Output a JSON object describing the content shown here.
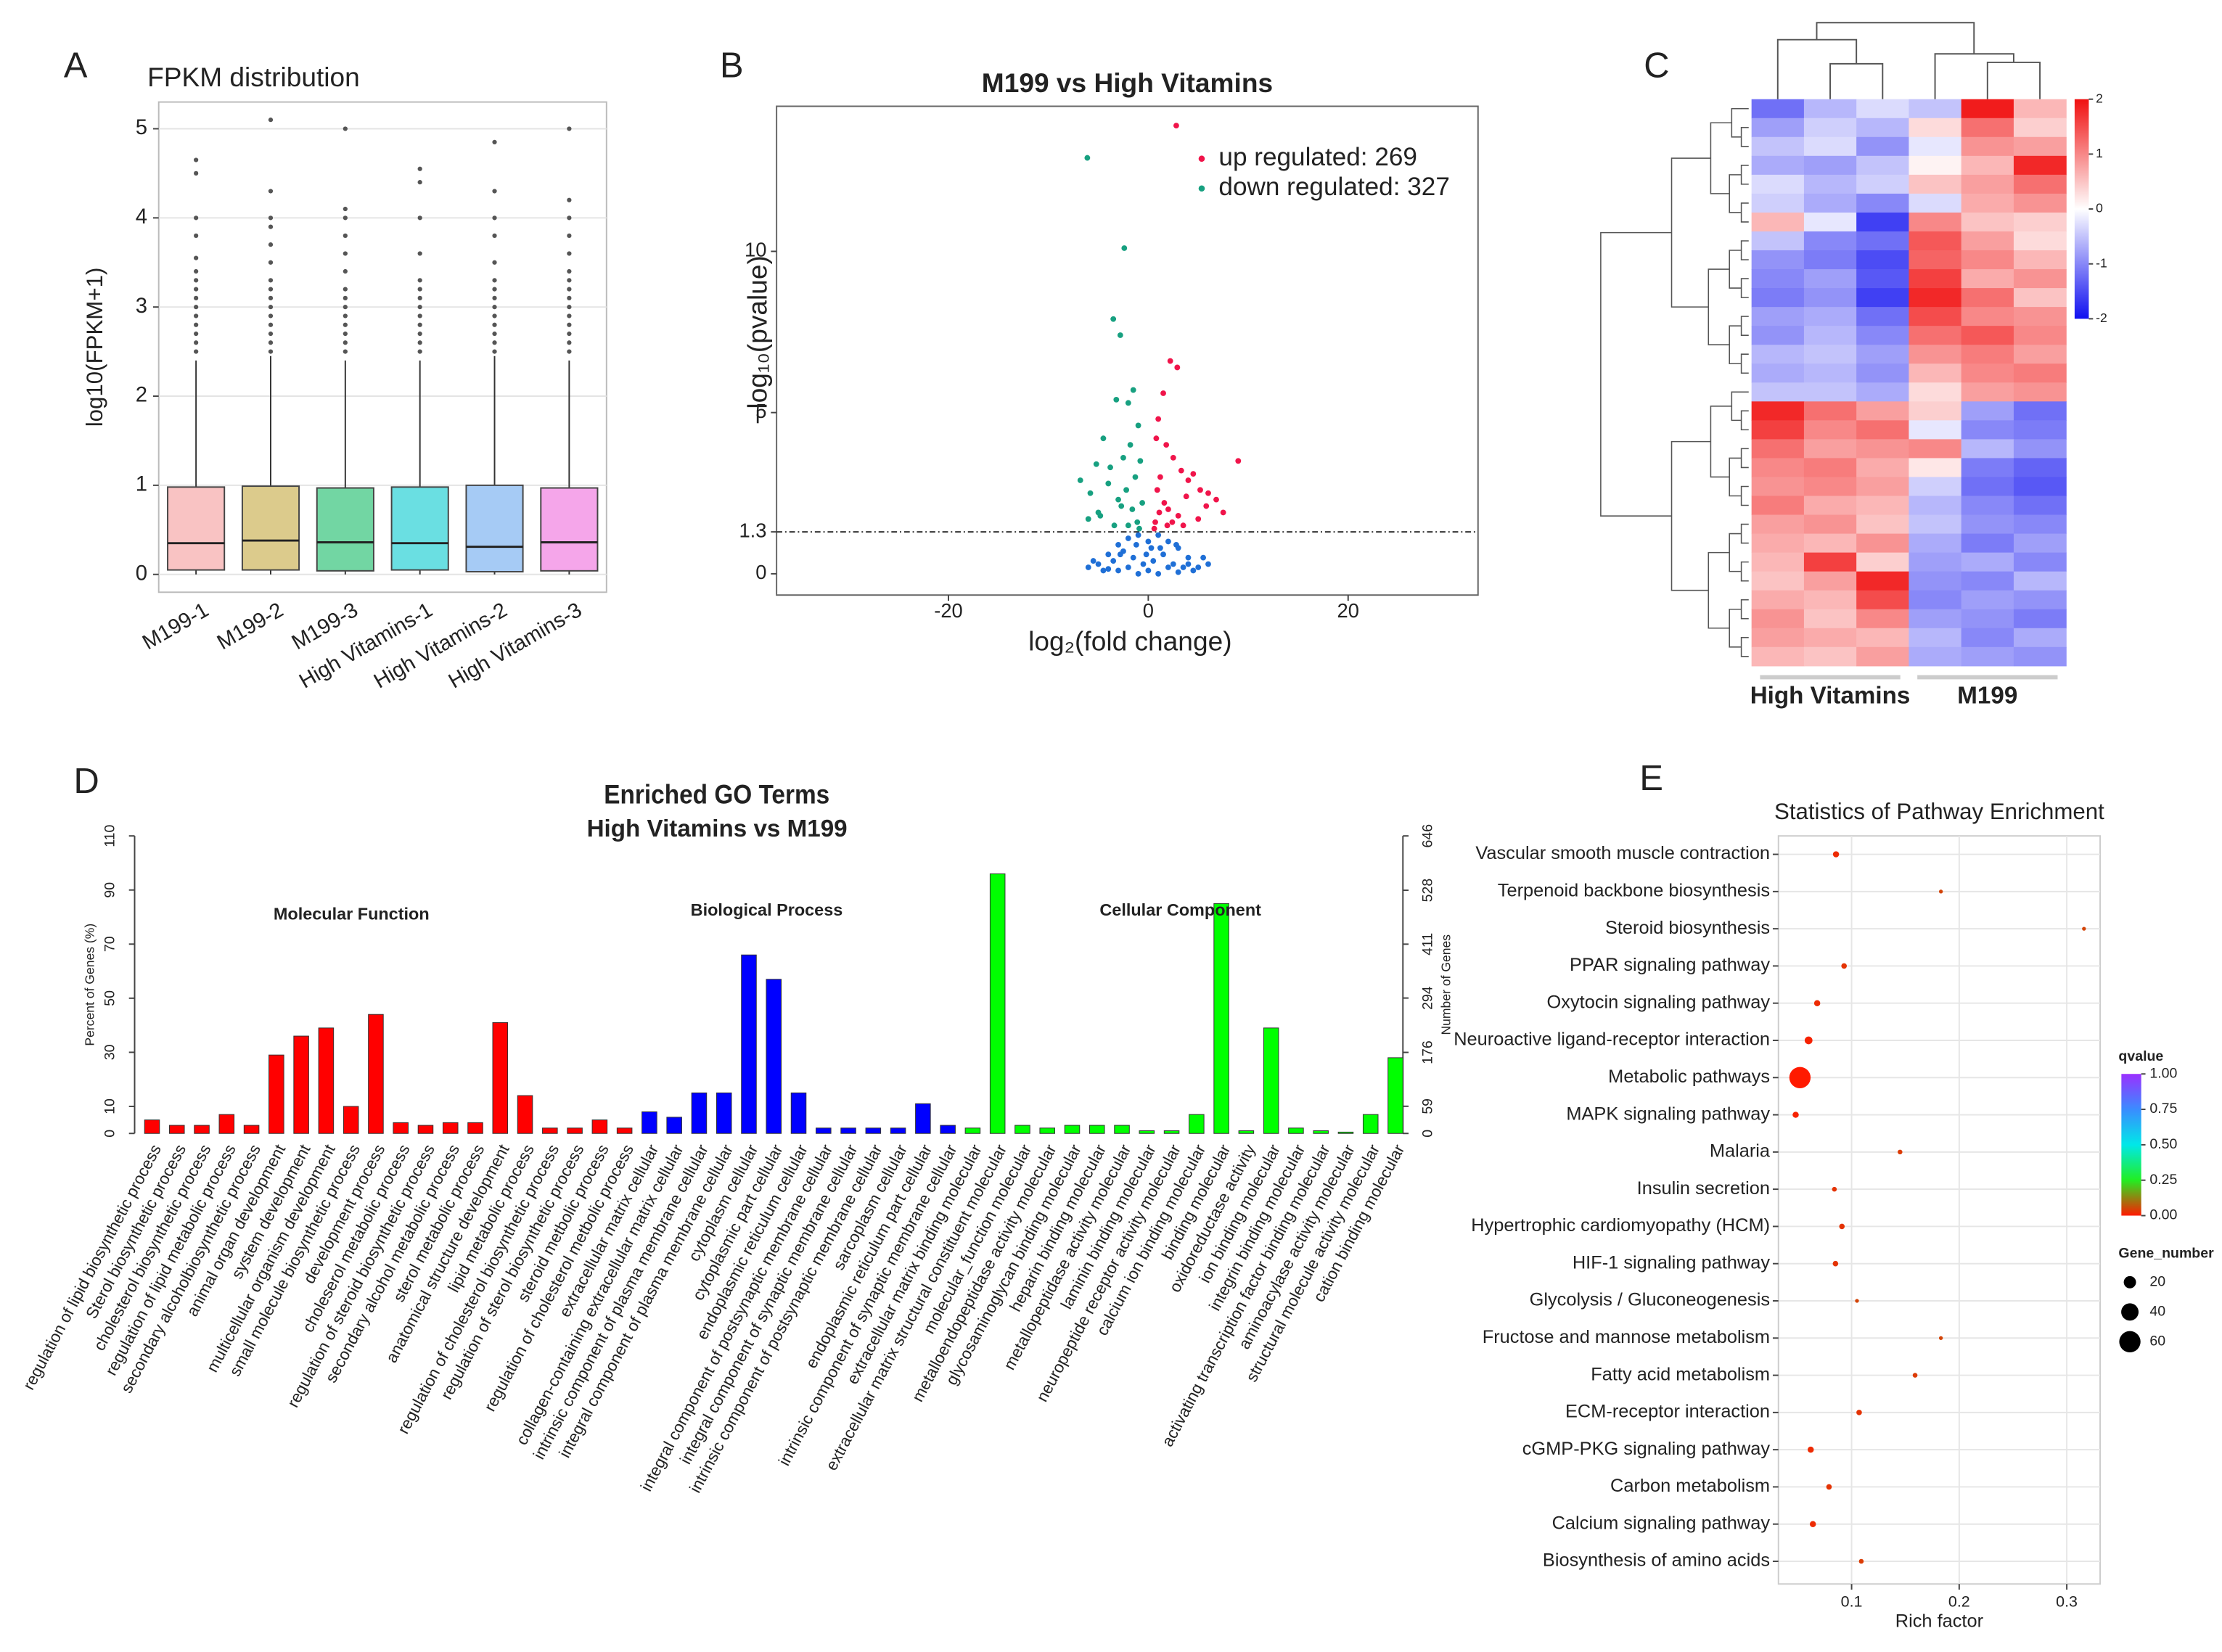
{
  "chart_data": [
    {
      "type": "box",
      "label": "A",
      "title": "FPKM distribution",
      "ylabel": "log10(FPKM+1)",
      "categories": [
        "M199-1",
        "M199-2",
        "M199-3",
        "High Vitamins-1",
        "High Vitamins-2",
        "High Vitamins-3"
      ],
      "colors": [
        "#f9c3c3",
        "#dccb8c",
        "#72d6a3",
        "#6adfe2",
        "#a6cbf5",
        "#f5a6ea"
      ],
      "boxes": [
        {
          "min": 0,
          "q1": 0.05,
          "median": 0.35,
          "q3": 0.98,
          "max": 2.4,
          "outliers": [
            2.5,
            2.6,
            2.7,
            2.8,
            2.9,
            3.0,
            3.1,
            3.2,
            3.3,
            3.4,
            3.55,
            3.8,
            4.0,
            4.5,
            4.65
          ]
        },
        {
          "min": 0,
          "q1": 0.05,
          "median": 0.38,
          "q3": 0.99,
          "max": 2.45,
          "outliers": [
            2.5,
            2.6,
            2.7,
            2.8,
            2.9,
            3.0,
            3.1,
            3.2,
            3.3,
            3.5,
            3.7,
            3.9,
            4.0,
            4.3,
            5.1
          ]
        },
        {
          "min": 0,
          "q1": 0.04,
          "median": 0.36,
          "q3": 0.97,
          "max": 2.4,
          "outliers": [
            2.5,
            2.6,
            2.7,
            2.8,
            2.9,
            3.0,
            3.1,
            3.2,
            3.4,
            3.6,
            3.8,
            4.0,
            4.1,
            5.0
          ]
        },
        {
          "min": 0,
          "q1": 0.05,
          "median": 0.35,
          "q3": 0.98,
          "max": 2.4,
          "outliers": [
            2.5,
            2.6,
            2.7,
            2.8,
            2.9,
            3.0,
            3.1,
            3.2,
            3.3,
            3.6,
            4.0,
            4.4,
            4.55
          ]
        },
        {
          "min": 0,
          "q1": 0.03,
          "median": 0.31,
          "q3": 1.0,
          "max": 2.45,
          "outliers": [
            2.5,
            2.6,
            2.7,
            2.8,
            2.9,
            3.0,
            3.1,
            3.2,
            3.3,
            3.5,
            3.8,
            4.0,
            4.3,
            4.85
          ]
        },
        {
          "min": 0,
          "q1": 0.04,
          "median": 0.36,
          "q3": 0.97,
          "max": 2.4,
          "outliers": [
            2.5,
            2.6,
            2.7,
            2.8,
            2.9,
            3.0,
            3.1,
            3.2,
            3.3,
            3.4,
            3.6,
            3.8,
            4.0,
            4.2,
            5.0
          ]
        }
      ],
      "ylim": [
        -0.2,
        5.3
      ],
      "yticks": [
        0,
        1,
        2,
        3,
        4,
        5
      ],
      "grid": true
    },
    {
      "type": "scatter",
      "label": "B",
      "title": "M199 vs High Vitamins",
      "xlabel": "log₂(fold change)",
      "ylabel": "−log₁₀(pvalue)",
      "series": [
        {
          "name": "up regulated: 269",
          "color": "#f0144a",
          "x": [
            2.8,
            2.2,
            2.9,
            1.5,
            1.0,
            0.8,
            1.8,
            2.5,
            3.3,
            4.0,
            4.5,
            5.2,
            6.0,
            6.8,
            7.5,
            9.0,
            1.2,
            0.9,
            1.6,
            2.0,
            3.0,
            3.8,
            5.0,
            5.8,
            0.7,
            1.1,
            2.4,
            1.9,
            0.6,
            3.5
          ],
          "values": [
            13.9,
            6.6,
            6.4,
            5.6,
            4.8,
            4.2,
            4.0,
            3.6,
            3.2,
            2.9,
            3.1,
            2.6,
            2.5,
            2.3,
            1.9,
            3.5,
            3.0,
            2.6,
            2.2,
            2.0,
            1.8,
            2.4,
            1.7,
            2.1,
            1.6,
            1.9,
            1.6,
            1.5,
            1.4,
            1.5
          ]
        },
        {
          "name": "down regulated: 327",
          "color": "#17a080",
          "x": [
            -6.1,
            -2.4,
            -3.5,
            -2.8,
            -1.5,
            -2.0,
            -3.2,
            -1.0,
            -4.5,
            -5.2,
            -6.8,
            -1.8,
            -2.5,
            -3.8,
            -0.8,
            -1.3,
            -4.0,
            -5.8,
            -2.2,
            -3.0,
            -0.6,
            -1.6,
            -2.7,
            -4.8,
            -6.0,
            -1.1,
            -3.4,
            -0.9,
            -2.0,
            -5.0
          ],
          "values": [
            12.9,
            10.1,
            7.9,
            7.4,
            5.7,
            5.3,
            5.4,
            4.6,
            4.2,
            3.4,
            2.9,
            4.0,
            3.6,
            3.3,
            3.5,
            3.0,
            2.8,
            2.5,
            2.6,
            2.3,
            2.2,
            2.0,
            2.1,
            1.8,
            1.7,
            1.6,
            1.5,
            1.4,
            1.5,
            1.9
          ]
        },
        {
          "color": "#1f6fd6",
          "x": [
            -5,
            -4,
            -3,
            -2,
            -1,
            0,
            1,
            2,
            3,
            4,
            5,
            -4.5,
            -3.5,
            -2.5,
            -1.5,
            -0.5,
            0.5,
            1.5,
            2.5,
            3.5,
            4.5,
            -6,
            -3,
            -1,
            0,
            1,
            3,
            6,
            -2,
            2,
            -0.2,
            0.3,
            -5.5,
            5.5,
            -4,
            4,
            -1.2,
            1.2,
            -2.8,
            2.8
          ],
          "values": [
            0.3,
            0.6,
            0.9,
            1.1,
            1.2,
            1.0,
            1.2,
            1.0,
            0.8,
            0.5,
            0.2,
            0.1,
            0.4,
            0.7,
            0.5,
            0.3,
            0.4,
            0.6,
            0.3,
            0.2,
            0.1,
            0.2,
            0.1,
            0.0,
            0.1,
            0.0,
            0.05,
            0.3,
            0.2,
            0.2,
            0.6,
            0.8,
            0.4,
            0.5,
            0.15,
            0.3,
            0.9,
            0.8,
            0.6,
            0.9
          ]
        }
      ],
      "hline": 1.3,
      "xlim": [
        -37.2,
        33
      ],
      "xticks": [
        -20,
        0,
        20
      ],
      "ylim": [
        -0.66,
        14.5
      ],
      "yticks": [
        0,
        1.3,
        5,
        10
      ],
      "legend": "top-right"
    },
    {
      "type": "heatmap",
      "label": "C",
      "x_groups": [
        "High Vitamins",
        "M199"
      ],
      "values": [
        [
          -1.2,
          -0.6,
          -0.3,
          -0.5,
          1.9,
          0.6
        ],
        [
          -0.8,
          -0.4,
          -0.6,
          0.3,
          1.2,
          0.4
        ],
        [
          -0.5,
          -0.3,
          -0.9,
          -0.2,
          0.9,
          0.8
        ],
        [
          -0.7,
          -0.8,
          -0.5,
          0.1,
          0.6,
          1.8
        ],
        [
          -0.3,
          -0.6,
          -0.4,
          0.5,
          0.8,
          1.2
        ],
        [
          -0.4,
          -0.7,
          -1.0,
          -0.3,
          0.7,
          0.9
        ],
        [
          0.6,
          -0.2,
          -1.6,
          1.0,
          0.5,
          0.4
        ],
        [
          -0.5,
          -1.0,
          -1.2,
          1.4,
          0.8,
          0.3
        ],
        [
          -0.9,
          -1.1,
          -1.5,
          1.3,
          1.0,
          0.6
        ],
        [
          -1.0,
          -0.8,
          -1.4,
          1.6,
          0.7,
          0.9
        ],
        [
          -1.1,
          -0.9,
          -1.6,
          1.8,
          1.2,
          0.5
        ],
        [
          -0.8,
          -0.7,
          -1.2,
          1.5,
          1.0,
          0.9
        ],
        [
          -0.9,
          -0.6,
          -1.0,
          1.2,
          1.4,
          1.0
        ],
        [
          -0.6,
          -0.5,
          -0.8,
          0.9,
          1.1,
          0.8
        ],
        [
          -0.7,
          -0.6,
          -0.9,
          0.6,
          1.0,
          1.1
        ],
        [
          -0.5,
          -0.5,
          -0.7,
          0.3,
          0.8,
          0.9
        ],
        [
          1.8,
          1.2,
          0.8,
          0.4,
          -0.8,
          -1.2
        ],
        [
          1.6,
          1.0,
          1.2,
          -0.2,
          -1.0,
          -1.1
        ],
        [
          1.2,
          0.8,
          0.9,
          1.0,
          -0.6,
          -0.9
        ],
        [
          1.0,
          1.1,
          0.7,
          0.2,
          -1.1,
          -1.3
        ],
        [
          0.9,
          1.0,
          0.8,
          -0.4,
          -1.2,
          -1.4
        ],
        [
          1.1,
          0.7,
          0.6,
          -0.6,
          -1.0,
          -1.2
        ],
        [
          0.8,
          0.9,
          0.5,
          -0.5,
          -0.9,
          -1.0
        ],
        [
          0.7,
          0.6,
          0.9,
          -0.7,
          -1.1,
          -0.8
        ],
        [
          0.6,
          1.6,
          0.4,
          -0.8,
          -0.7,
          -1.0
        ],
        [
          0.5,
          0.8,
          1.8,
          -0.9,
          -1.0,
          -0.6
        ],
        [
          0.7,
          0.6,
          1.5,
          -1.0,
          -0.8,
          -0.9
        ],
        [
          0.9,
          0.5,
          1.0,
          -0.8,
          -0.9,
          -1.1
        ],
        [
          0.8,
          0.7,
          0.6,
          -0.6,
          -1.0,
          -0.7
        ],
        [
          0.6,
          0.5,
          0.8,
          -0.7,
          -0.8,
          -0.9
        ]
      ],
      "zlim": [
        -2,
        2
      ],
      "zticks": [
        2,
        1,
        0,
        -1,
        -2
      ],
      "colors": [
        "#1010f0",
        "#ffffff",
        "#f01010"
      ]
    },
    {
      "type": "bar",
      "label": "D",
      "title": "Enriched GO Terms",
      "subtitle": "High Vitamins vs M199",
      "ylabel": "Percent of Genes (%)",
      "y2label": "Number of Genes",
      "groups": [
        "Molecular Function",
        "Biological Process",
        "Cellular Component"
      ],
      "categories": [
        "regulation of lipid biosynthetic process",
        "Sterol biosynthetic process",
        "cholesterol biosynthetic process",
        "regulation of lipid metabolic process",
        "secondary alcoholbiosynthetic process",
        "animal organ development",
        "system development",
        "multicellular organism development",
        "small molecule biosynthetic process",
        "development process",
        "choleserol metabolic process",
        "regulation of steroid biosynthetic process",
        "secondary alcohol metabolic process",
        "sterol metabolic process",
        "anatomical structure development",
        "lipid metabolic process",
        "regulation of cholesterol biosynthetic process",
        "regulation of sterol biosynthetic process",
        "steroid metbolic process",
        "regulation of cholesterol metbolic process",
        "extracellular matrix cellular",
        "collagen-containing extracellular matrix cellular",
        "intrinsic component of plasma membrane cellular",
        "integral component of plasma membrane cellular",
        "cytoplasm cellular",
        "cytoplasmic part cellular",
        "endoplasmic reticulum cellular",
        "integral component of postsynaptic membrane cellular",
        "integral component of synaptic membrane cellular",
        "intrinsic component of postsynaptic membrane cellular",
        "sarcoplasm cellular",
        "endoplasmic reticulum part cellular",
        "intrinsic component of synaptic membrane cellular",
        "extracellular matrix binding molecular",
        "extracellular matrix structural constituent molecular",
        "molecular_function molecular",
        "metalloendopeptidase activity molecular",
        "glycosaminoglycan binding molecular",
        "heparin binding molecular",
        "metallopeptidase activity molecular",
        "laminin binding molecular",
        "neuropeptide receptor activity molecular",
        "calcium ion binding molecular",
        "binding molecular",
        "oxidoreductase activity",
        "ion binding molecular",
        "integrin binding molecular",
        "activating transcription factor binding molecular",
        "aminoacylase activity molecular",
        "structural molecule activity molecular",
        "cation binding molecular"
      ],
      "values": [
        5,
        3,
        3,
        7,
        3,
        29,
        36,
        39,
        10,
        44,
        4,
        3,
        4,
        4,
        41,
        14,
        2,
        2,
        5,
        2,
        8,
        6,
        15,
        15,
        66,
        57,
        15,
        2,
        2,
        2,
        2,
        11,
        3,
        2,
        96,
        3,
        2,
        3,
        3,
        3,
        1,
        1,
        7,
        85,
        1,
        39,
        2,
        1,
        0.5,
        7,
        28
      ],
      "colors": [
        "#ff0000",
        "#ff0000",
        "#ff0000",
        "#ff0000",
        "#ff0000",
        "#ff0000",
        "#ff0000",
        "#ff0000",
        "#ff0000",
        "#ff0000",
        "#ff0000",
        "#ff0000",
        "#ff0000",
        "#ff0000",
        "#ff0000",
        "#ff0000",
        "#ff0000",
        "#ff0000",
        "#ff0000",
        "#ff0000",
        "#0000ff",
        "#0000ff",
        "#0000ff",
        "#0000ff",
        "#0000ff",
        "#0000ff",
        "#0000ff",
        "#0000ff",
        "#0000ff",
        "#0000ff",
        "#0000ff",
        "#0000ff",
        "#0000ff",
        "#00ff00",
        "#00ff00",
        "#00ff00",
        "#00ff00",
        "#00ff00",
        "#00ff00",
        "#00ff00",
        "#00ff00",
        "#00ff00",
        "#00ff00",
        "#00ff00",
        "#00ff00",
        "#00ff00",
        "#00ff00",
        "#00ff00",
        "#00ff00",
        "#00ff00",
        "#00ff00"
      ],
      "ylim": [
        0,
        110
      ],
      "yticks": [
        0,
        10,
        30,
        50,
        70,
        90,
        110
      ],
      "y2lim": [
        0,
        646
      ],
      "y2ticks": [
        0,
        59,
        176,
        294,
        411,
        528,
        646
      ]
    },
    {
      "type": "bubble",
      "label": "E",
      "title": "Statistics of Pathway Enrichment",
      "xlabel": "Rich factor",
      "categories": [
        "Vascular smooth muscle contraction",
        "Terpenoid backbone biosynthesis",
        "Steroid biosynthesis",
        "PPAR signaling pathway",
        "Oxytocin signaling pathway",
        "Neuroactive ligand-receptor interaction",
        "Metabolic pathways",
        "MAPK signaling pathway",
        "Malaria",
        "Insulin secretion",
        "Hypertrophic cardiomyopathy (HCM)",
        "HIF-1 signaling pathway",
        "Glycolysis / Gluconeogenesis",
        "Fructose and mannose metabolism",
        "Fatty acid metabolism",
        "ECM-receptor interaction",
        "cGMP-PKG signaling pathway",
        "Carbon metabolism",
        "Calcium signaling pathway",
        "Biosynthesis of amino acids"
      ],
      "x": [
        0.0855,
        0.183,
        0.316,
        0.093,
        0.068,
        0.06,
        0.052,
        0.048,
        0.145,
        0.084,
        0.091,
        0.085,
        0.105,
        0.183,
        0.159,
        0.107,
        0.062,
        0.079,
        0.064,
        0.109
      ],
      "qvalues": [
        0.02,
        0.05,
        0.05,
        0.03,
        0.02,
        0.01,
        0.0,
        0.01,
        0.04,
        0.03,
        0.03,
        0.03,
        0.05,
        0.05,
        0.04,
        0.03,
        0.02,
        0.03,
        0.02,
        0.04
      ],
      "sizes": [
        5,
        2,
        2,
        4,
        5,
        8,
        60,
        5,
        3,
        3,
        4,
        4,
        2,
        2,
        3,
        4,
        5,
        4,
        5,
        3
      ],
      "qlabel": "qvalue",
      "qticks": [
        {
          "value": 1,
          "label": "1.00"
        },
        {
          "value": 0.75,
          "label": "0.75"
        },
        {
          "value": 0.5,
          "label": "0.50"
        },
        {
          "value": 0.25,
          "label": "0.25"
        },
        {
          "value": 0,
          "label": "0.00"
        }
      ],
      "colors": [
        "#ff1a00",
        "#22ee22",
        "#00e8e8",
        "#3a8cff",
        "#9a30ff"
      ],
      "size_label": "Gene_number",
      "size_ticks": [
        20,
        40,
        60
      ],
      "xlim": [
        0.032,
        0.331
      ],
      "xticks": [
        0.1,
        0.2,
        0.3
      ],
      "grid": true
    }
  ]
}
